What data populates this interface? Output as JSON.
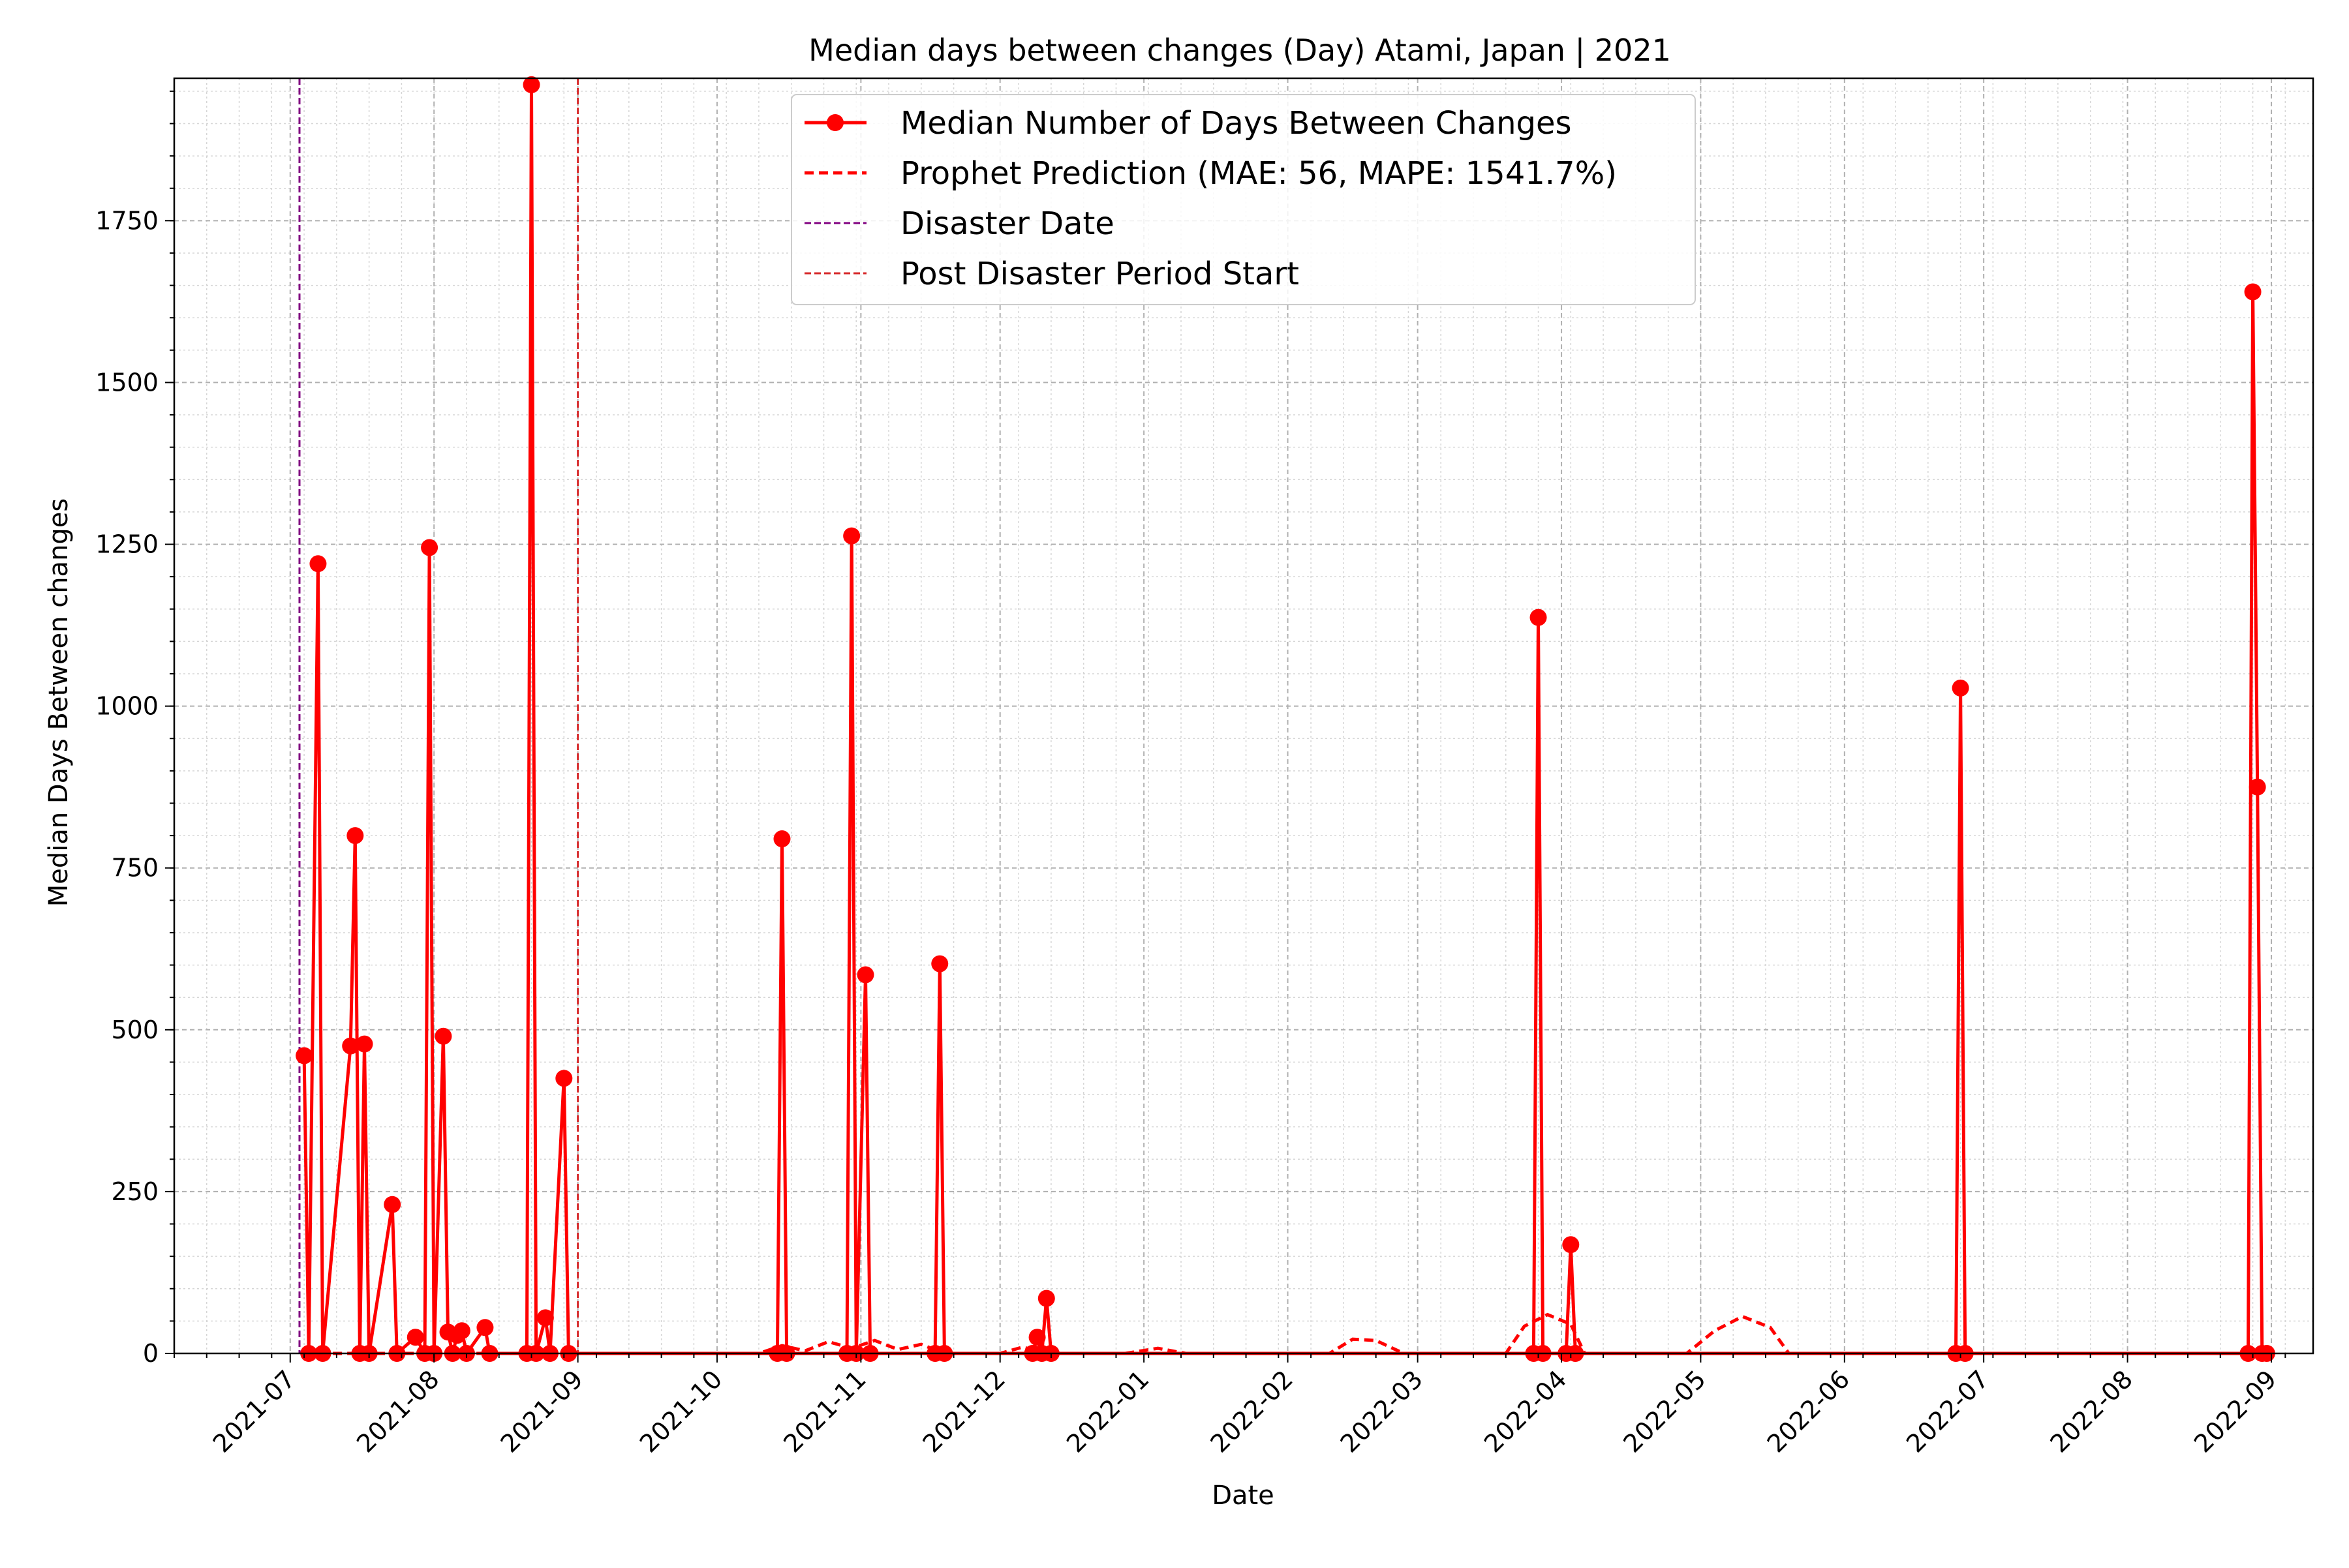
{
  "chart_data": {
    "type": "line",
    "title": "Median days between changes (Day) Atami, Japan | 2021",
    "xlabel": "Date",
    "ylabel": "Median Days Between changes",
    "xlim": [
      "2021-06-06",
      "2022-09-10"
    ],
    "ylim": [
      0,
      1970
    ],
    "grid": true,
    "legend_position": "top-center",
    "x_ticks": [
      "2021-07",
      "2021-08",
      "2021-09",
      "2021-10",
      "2021-11",
      "2021-12",
      "2022-01",
      "2022-02",
      "2022-03",
      "2022-04",
      "2022-05",
      "2022-06",
      "2022-07",
      "2022-08",
      "2022-09"
    ],
    "y_ticks": [
      0,
      250,
      500,
      750,
      1000,
      1250,
      1500,
      1750
    ],
    "vlines": [
      {
        "name": "Disaster Date",
        "x": "2021-07-03",
        "color": "#800080"
      },
      {
        "name": "Post Disaster Period Start",
        "x": "2021-09-01",
        "color": "#d62728"
      }
    ],
    "series": [
      {
        "name": "Median Number of Days Between Changes",
        "color": "#ff0000",
        "style": "solid-marker",
        "points": [
          {
            "x": "2021-07-04",
            "y": 460
          },
          {
            "x": "2021-07-05",
            "y": 0
          },
          {
            "x": "2021-07-07",
            "y": 1220
          },
          {
            "x": "2021-07-08",
            "y": 0
          },
          {
            "x": "2021-07-14",
            "y": 475
          },
          {
            "x": "2021-07-15",
            "y": 800
          },
          {
            "x": "2021-07-16",
            "y": 0
          },
          {
            "x": "2021-07-17",
            "y": 478
          },
          {
            "x": "2021-07-18",
            "y": 0
          },
          {
            "x": "2021-07-23",
            "y": 230
          },
          {
            "x": "2021-07-24",
            "y": 0
          },
          {
            "x": "2021-07-28",
            "y": 25
          },
          {
            "x": "2021-07-30",
            "y": 0
          },
          {
            "x": "2021-07-31",
            "y": 1245
          },
          {
            "x": "2021-08-01",
            "y": 0
          },
          {
            "x": "2021-08-03",
            "y": 490
          },
          {
            "x": "2021-08-04",
            "y": 33
          },
          {
            "x": "2021-08-05",
            "y": 0
          },
          {
            "x": "2021-08-06",
            "y": 28
          },
          {
            "x": "2021-08-07",
            "y": 35
          },
          {
            "x": "2021-08-08",
            "y": 0
          },
          {
            "x": "2021-08-12",
            "y": 40
          },
          {
            "x": "2021-08-13",
            "y": 0
          },
          {
            "x": "2021-08-21",
            "y": 0
          },
          {
            "x": "2021-08-22",
            "y": 1960
          },
          {
            "x": "2021-08-23",
            "y": 0
          },
          {
            "x": "2021-08-25",
            "y": 55
          },
          {
            "x": "2021-08-26",
            "y": 0
          },
          {
            "x": "2021-08-29",
            "y": 425
          },
          {
            "x": "2021-08-30",
            "y": 0
          },
          {
            "x": "2021-10-14",
            "y": 0
          },
          {
            "x": "2021-10-15",
            "y": 795
          },
          {
            "x": "2021-10-16",
            "y": 0
          },
          {
            "x": "2021-10-29",
            "y": 0
          },
          {
            "x": "2021-10-30",
            "y": 1263
          },
          {
            "x": "2021-10-31",
            "y": 0
          },
          {
            "x": "2021-11-02",
            "y": 585
          },
          {
            "x": "2021-11-03",
            "y": 0
          },
          {
            "x": "2021-11-17",
            "y": 0
          },
          {
            "x": "2021-11-18",
            "y": 602
          },
          {
            "x": "2021-11-19",
            "y": 0
          },
          {
            "x": "2021-12-08",
            "y": 0
          },
          {
            "x": "2021-12-09",
            "y": 25
          },
          {
            "x": "2021-12-10",
            "y": 0
          },
          {
            "x": "2021-12-11",
            "y": 85
          },
          {
            "x": "2021-12-12",
            "y": 0
          },
          {
            "x": "2022-03-26",
            "y": 0
          },
          {
            "x": "2022-03-27",
            "y": 1137
          },
          {
            "x": "2022-03-28",
            "y": 0
          },
          {
            "x": "2022-04-02",
            "y": 0
          },
          {
            "x": "2022-04-03",
            "y": 168
          },
          {
            "x": "2022-04-04",
            "y": 0
          },
          {
            "x": "2022-06-25",
            "y": 0
          },
          {
            "x": "2022-06-26",
            "y": 1028
          },
          {
            "x": "2022-06-27",
            "y": 0
          },
          {
            "x": "2022-08-27",
            "y": 0
          },
          {
            "x": "2022-08-28",
            "y": 1640
          },
          {
            "x": "2022-08-29",
            "y": 875
          },
          {
            "x": "2022-08-30",
            "y": 0
          },
          {
            "x": "2022-08-31",
            "y": 0
          }
        ]
      },
      {
        "name": "Prophet Prediction (MAE: 56, MAPE: 1541.7%)",
        "color": "#ff0000",
        "style": "dashed",
        "points": [
          {
            "x": "2021-07-04",
            "y": 0
          },
          {
            "x": "2021-10-10",
            "y": 0
          },
          {
            "x": "2021-10-15",
            "y": 12
          },
          {
            "x": "2021-10-20",
            "y": 4
          },
          {
            "x": "2021-10-25",
            "y": 18
          },
          {
            "x": "2021-10-30",
            "y": 8
          },
          {
            "x": "2021-11-04",
            "y": 20
          },
          {
            "x": "2021-11-09",
            "y": 6
          },
          {
            "x": "2021-11-14",
            "y": 14
          },
          {
            "x": "2021-11-19",
            "y": 0
          },
          {
            "x": "2021-12-01",
            "y": 0
          },
          {
            "x": "2021-12-06",
            "y": 10
          },
          {
            "x": "2021-12-10",
            "y": 0
          },
          {
            "x": "2021-12-28",
            "y": 0
          },
          {
            "x": "2022-01-04",
            "y": 8
          },
          {
            "x": "2022-01-10",
            "y": 0
          },
          {
            "x": "2022-02-10",
            "y": 0
          },
          {
            "x": "2022-02-15",
            "y": 22
          },
          {
            "x": "2022-02-20",
            "y": 20
          },
          {
            "x": "2022-02-26",
            "y": 0
          },
          {
            "x": "2022-03-20",
            "y": 0
          },
          {
            "x": "2022-03-24",
            "y": 42
          },
          {
            "x": "2022-03-29",
            "y": 60
          },
          {
            "x": "2022-04-03",
            "y": 45
          },
          {
            "x": "2022-04-06",
            "y": 0
          },
          {
            "x": "2022-04-28",
            "y": 0
          },
          {
            "x": "2022-05-04",
            "y": 35
          },
          {
            "x": "2022-05-10",
            "y": 57
          },
          {
            "x": "2022-05-16",
            "y": 40
          },
          {
            "x": "2022-05-20",
            "y": 0
          },
          {
            "x": "2022-08-31",
            "y": 0
          }
        ]
      }
    ]
  }
}
